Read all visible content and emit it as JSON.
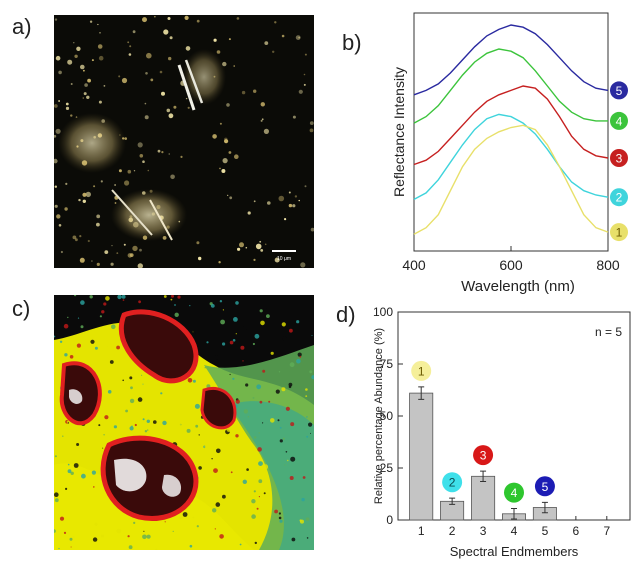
{
  "panels": {
    "a": "a)",
    "b": "b)",
    "c": "c)",
    "d": "d)"
  },
  "micrograph": {
    "scale_bar_label": "10 μm"
  },
  "chart_data": [
    {
      "type": "line",
      "xlabel": "Wavelength (nm)",
      "ylabel": "Reflectance Intensity",
      "xlim": [
        400,
        800
      ],
      "xticks": [
        400,
        600,
        800
      ],
      "x": [
        400,
        425,
        450,
        475,
        500,
        525,
        550,
        575,
        600,
        625,
        650,
        675,
        700,
        725,
        750,
        775,
        800
      ],
      "series": [
        {
          "name": "5",
          "color": "#2a2aa0",
          "values": [
            0.68,
            0.7,
            0.73,
            0.78,
            0.84,
            0.9,
            0.95,
            0.98,
            1.0,
            0.99,
            0.96,
            0.91,
            0.85,
            0.79,
            0.74,
            0.71,
            0.7
          ]
        },
        {
          "name": "4",
          "color": "#3cc43c",
          "values": [
            0.55,
            0.58,
            0.63,
            0.7,
            0.77,
            0.83,
            0.87,
            0.89,
            0.88,
            0.85,
            0.79,
            0.72,
            0.65,
            0.6,
            0.57,
            0.56,
            0.56
          ]
        },
        {
          "name": "3",
          "color": "#c62020",
          "values": [
            0.36,
            0.38,
            0.42,
            0.48,
            0.54,
            0.6,
            0.65,
            0.68,
            0.7,
            0.72,
            0.71,
            0.66,
            0.58,
            0.49,
            0.43,
            0.4,
            0.39
          ]
        },
        {
          "name": "2",
          "color": "#3fd4dc",
          "values": [
            0.2,
            0.23,
            0.29,
            0.37,
            0.45,
            0.52,
            0.57,
            0.59,
            0.58,
            0.55,
            0.5,
            0.43,
            0.35,
            0.28,
            0.24,
            0.22,
            0.21
          ]
        },
        {
          "name": "1",
          "color": "#e8e06a",
          "values": [
            0.04,
            0.07,
            0.13,
            0.24,
            0.35,
            0.43,
            0.48,
            0.51,
            0.53,
            0.54,
            0.52,
            0.45,
            0.35,
            0.24,
            0.13,
            0.07,
            0.05
          ]
        }
      ],
      "legend": [
        "5",
        "4",
        "3",
        "2",
        "1"
      ]
    },
    {
      "type": "bar",
      "xlabel": "Spectral Endmembers",
      "ylabel": "Relative percentage Abundance (%)",
      "ylim": [
        0,
        100
      ],
      "yticks": [
        0,
        25,
        50,
        75,
        100
      ],
      "categories": [
        "1",
        "2",
        "3",
        "4",
        "5",
        "6",
        "7"
      ],
      "values": [
        61,
        9,
        21,
        3,
        6,
        0,
        0
      ],
      "errors": [
        3,
        1.5,
        2.5,
        2.5,
        2.5,
        0,
        0
      ],
      "annotation": "n = 5",
      "markers": [
        {
          "label": "1",
          "color": "#f5ef9a"
        },
        {
          "label": "2",
          "color": "#3fe0ea"
        },
        {
          "label": "3",
          "color": "#d81818"
        },
        {
          "label": "4",
          "color": "#2ec62e"
        },
        {
          "label": "5",
          "color": "#1c1cb4"
        }
      ]
    }
  ]
}
